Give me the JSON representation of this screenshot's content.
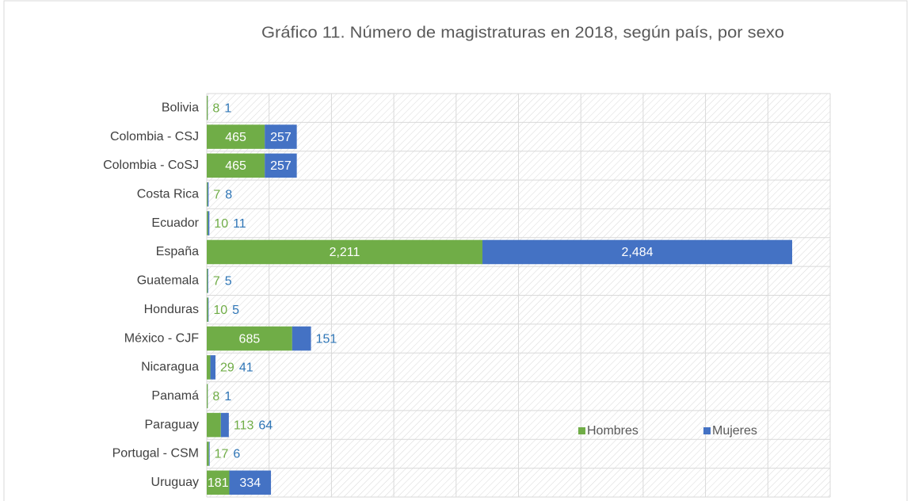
{
  "chart_data": {
    "type": "stacked-barh",
    "title": "Gráfico 11. Número de magistraturas en 2018, según país,  por sexo",
    "categories": [
      "Bolivia",
      "Colombia - CSJ",
      "Colombia - CoSJ",
      "Costa Rica",
      "Ecuador",
      "España",
      "Guatemala",
      "Honduras",
      "México - CJF",
      "Nicaragua",
      "Panamá",
      "Paraguay",
      "Portugal - CSM",
      "Uruguay"
    ],
    "series": [
      {
        "name": "Hombres",
        "color": "#70ad47",
        "values": [
          8,
          465,
          465,
          7,
          10,
          2211,
          7,
          10,
          685,
          29,
          8,
          113,
          17,
          181
        ],
        "value_labels": [
          "8",
          "465",
          "465",
          "7",
          "10",
          "2,211",
          "7",
          "10",
          "685",
          "29",
          "8",
          "113",
          "17",
          "181"
        ]
      },
      {
        "name": "Mujeres",
        "color": "#4472c4",
        "values": [
          1,
          257,
          257,
          8,
          11,
          2484,
          5,
          5,
          151,
          41,
          1,
          64,
          6,
          334
        ],
        "value_labels": [
          "1",
          "257",
          "257",
          "8",
          "11",
          "2,484",
          "5",
          "5",
          "151",
          "41",
          "1",
          "64",
          "6",
          "334"
        ]
      }
    ],
    "xlim": [
      0,
      5000
    ],
    "xticks": [
      0,
      500,
      1000,
      1500,
      2000,
      2500,
      3000,
      3500,
      4000,
      4500,
      5000
    ],
    "grid": true
  }
}
